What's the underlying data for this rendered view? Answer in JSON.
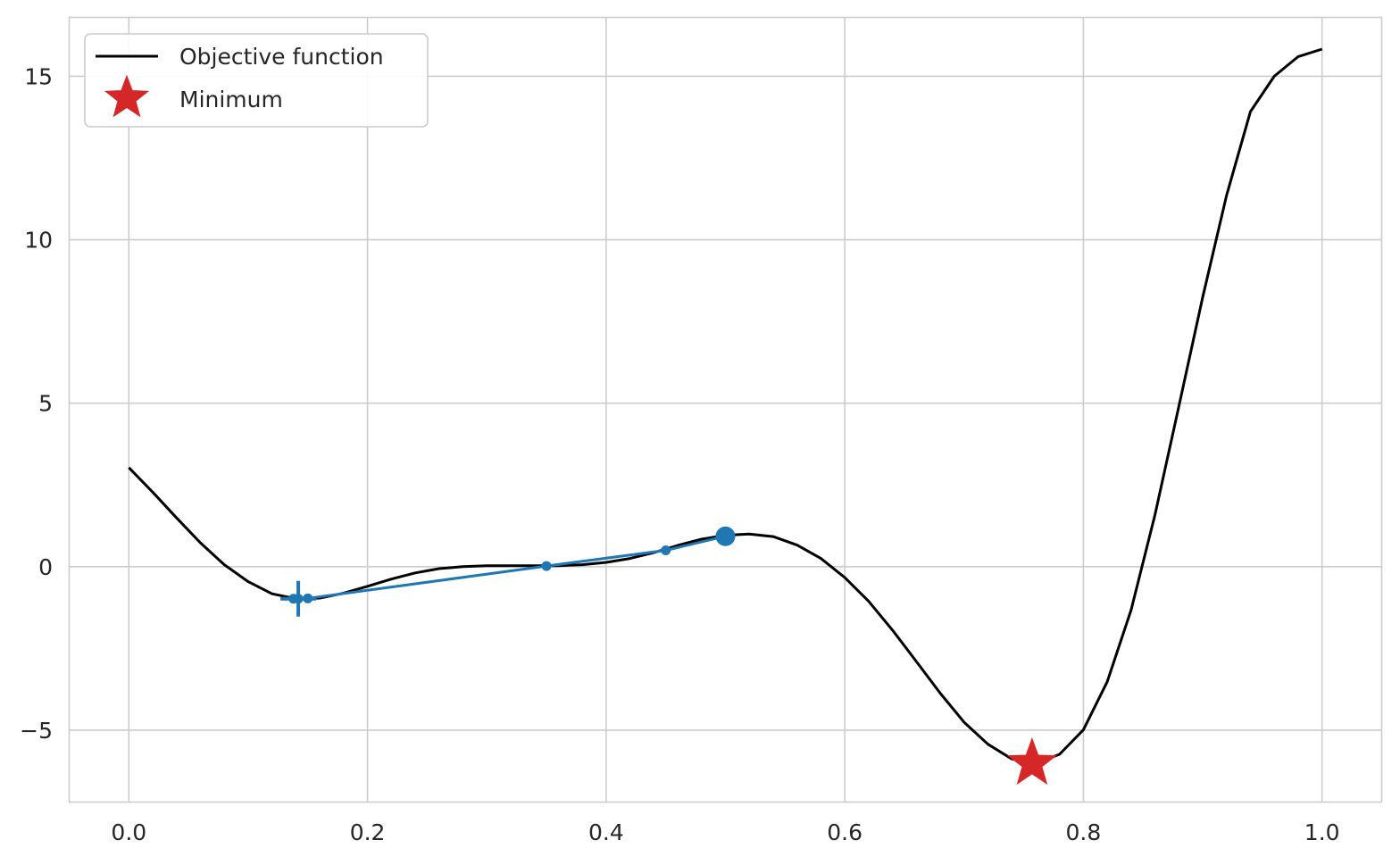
{
  "chart_data": {
    "type": "line",
    "title": "",
    "xlabel": "",
    "ylabel": "",
    "xlim": [
      -0.05,
      1.05
    ],
    "ylim": [
      -7.2,
      16.8
    ],
    "grid": true,
    "legend_position": "top-left",
    "x_ticks": [
      {
        "value": 0.0,
        "label": "0.0"
      },
      {
        "value": 0.2,
        "label": "0.2"
      },
      {
        "value": 0.4,
        "label": "0.4"
      },
      {
        "value": 0.6,
        "label": "0.6"
      },
      {
        "value": 0.8,
        "label": "0.8"
      },
      {
        "value": 1.0,
        "label": "1.0"
      }
    ],
    "y_ticks": [
      {
        "value": -5,
        "label": "−5"
      },
      {
        "value": 0,
        "label": "0"
      },
      {
        "value": 5,
        "label": "5"
      },
      {
        "value": 10,
        "label": "10"
      },
      {
        "value": 15,
        "label": "15"
      }
    ],
    "series": [
      {
        "name": "Objective function",
        "color": "#000000",
        "style": "line",
        "x": [
          0.0,
          0.02,
          0.04,
          0.06,
          0.08,
          0.1,
          0.12,
          0.14,
          0.16,
          0.18,
          0.2,
          0.22,
          0.24,
          0.26,
          0.28,
          0.3,
          0.32,
          0.34,
          0.36,
          0.38,
          0.4,
          0.42,
          0.44,
          0.46,
          0.48,
          0.5,
          0.52,
          0.54,
          0.56,
          0.58,
          0.6,
          0.62,
          0.64,
          0.66,
          0.68,
          0.7,
          0.72,
          0.74,
          0.76,
          0.78,
          0.8,
          0.82,
          0.84,
          0.86,
          0.88,
          0.9,
          0.92,
          0.94,
          0.96,
          0.98,
          1.0
        ],
        "y": [
          3.03,
          2.28,
          1.49,
          0.73,
          0.06,
          -0.46,
          -0.83,
          -0.98,
          -0.96,
          -0.81,
          -0.6,
          -0.38,
          -0.19,
          -0.06,
          0.0,
          0.03,
          0.03,
          0.03,
          0.03,
          0.06,
          0.13,
          0.25,
          0.43,
          0.65,
          0.84,
          0.96,
          1.0,
          0.92,
          0.66,
          0.25,
          -0.33,
          -1.06,
          -1.94,
          -2.9,
          -3.87,
          -4.76,
          -5.43,
          -5.88,
          -6.02,
          -5.74,
          -4.99,
          -3.52,
          -1.32,
          1.59,
          4.9,
          8.24,
          11.36,
          13.92,
          15.0,
          15.6,
          15.83
        ]
      },
      {
        "name": "",
        "color": "#1f77b4",
        "style": "line-markers",
        "x": [
          0.5,
          0.45,
          0.35,
          0.15,
          0.138,
          0.142
        ],
        "y": [
          0.93,
          0.5,
          0.02,
          -0.97,
          -0.98,
          -0.98
        ]
      }
    ],
    "markers": [
      {
        "name": "Minimum",
        "type": "star",
        "color": "#d62728",
        "x": 0.757,
        "y": -6.02
      },
      {
        "name": "",
        "type": "circle-large",
        "color": "#1f77b4",
        "x": 0.5,
        "y": 0.93
      },
      {
        "name": "",
        "type": "plus",
        "color": "#1f77b4",
        "x": 0.142,
        "y": -0.98
      }
    ],
    "legend": [
      {
        "label": "Objective function",
        "kind": "line",
        "color": "#000000"
      },
      {
        "label": "Minimum",
        "kind": "star",
        "color": "#d62728"
      }
    ]
  }
}
